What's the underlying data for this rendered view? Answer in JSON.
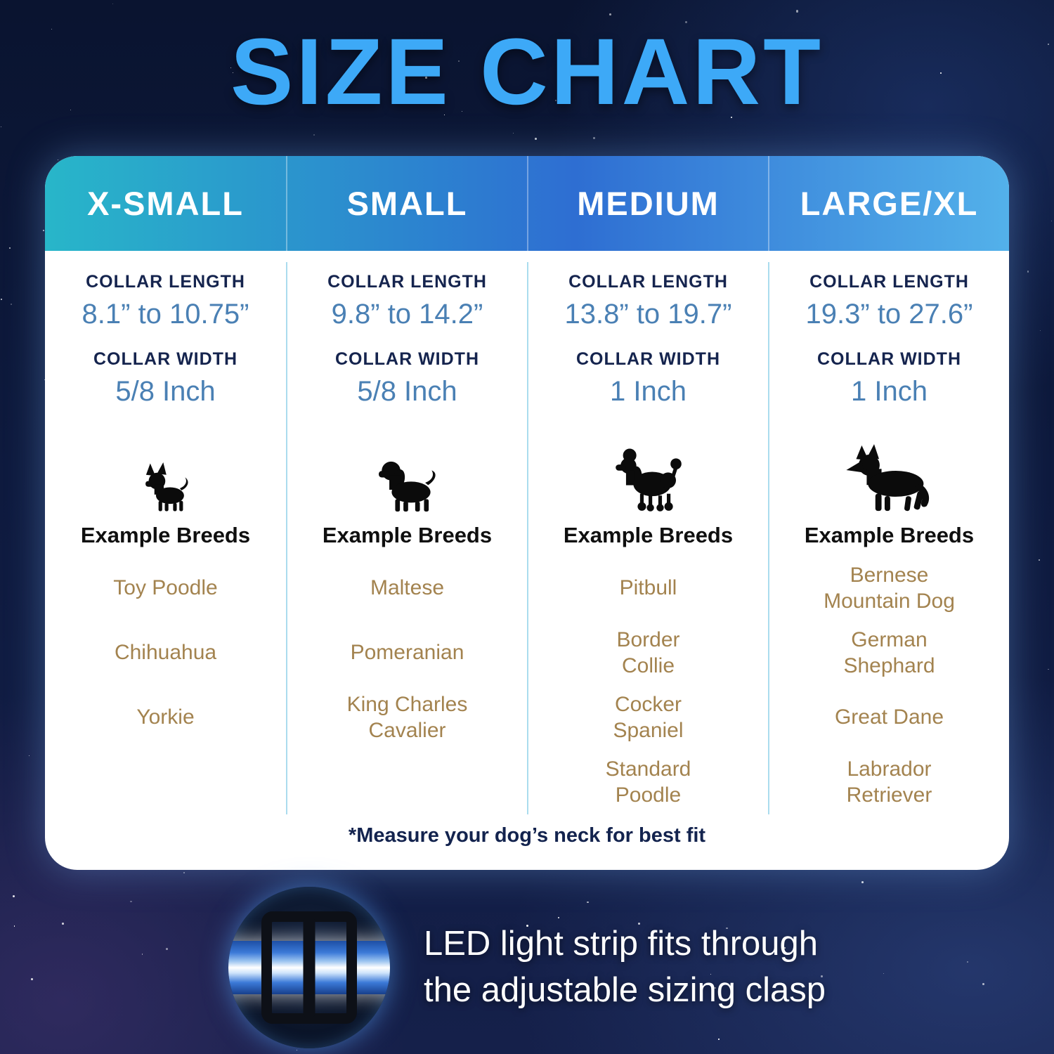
{
  "chart_data": {
    "type": "table",
    "title": "SIZE CHART",
    "row_labels": {
      "length": "COLLAR LENGTH",
      "width": "COLLAR WIDTH",
      "breeds": "Example Breeds"
    },
    "columns": [
      {
        "name": "X-SMALL",
        "collar_length": "8.1” to 10.75”",
        "collar_width": "5/8 Inch",
        "dog_icon": "chihuahua-silhouette",
        "breeds": [
          "Toy Poodle",
          "Chihuahua",
          "Yorkie"
        ]
      },
      {
        "name": "SMALL",
        "collar_length": "9.8” to 14.2”",
        "collar_width": "5/8 Inch",
        "dog_icon": "cavalier-king-charles-silhouette",
        "breeds": [
          "Maltese",
          "Pomeranian",
          "King Charles\nCavalier"
        ]
      },
      {
        "name": "MEDIUM",
        "collar_length": "13.8” to 19.7”",
        "collar_width": "1 Inch",
        "dog_icon": "poodle-silhouette",
        "breeds": [
          "Pitbull",
          "Border\nCollie",
          "Cocker\nSpaniel",
          "Standard\nPoodle"
        ]
      },
      {
        "name": "LARGE/XL",
        "collar_length": "19.3” to 27.6”",
        "collar_width": "1 Inch",
        "dog_icon": "german-shepherd-silhouette",
        "breeds": [
          "Bernese\nMountain Dog",
          "German\nShephard",
          "Great Dane",
          "Labrador\nRetriever"
        ]
      }
    ],
    "footnote": "*Measure your dog’s neck for best fit"
  },
  "led_callout": {
    "line1": "LED light strip fits through",
    "line2": "the adjustable sizing clasp"
  },
  "colors": {
    "title_blue": "#3da9f7",
    "header_gradient_left": "#28b6c9",
    "header_gradient_right": "#53b1ea",
    "value_blue": "#4a80b4",
    "breed_brown": "#a3834f",
    "divider_blue": "#aadcee",
    "background_navy": "#0c1633"
  }
}
